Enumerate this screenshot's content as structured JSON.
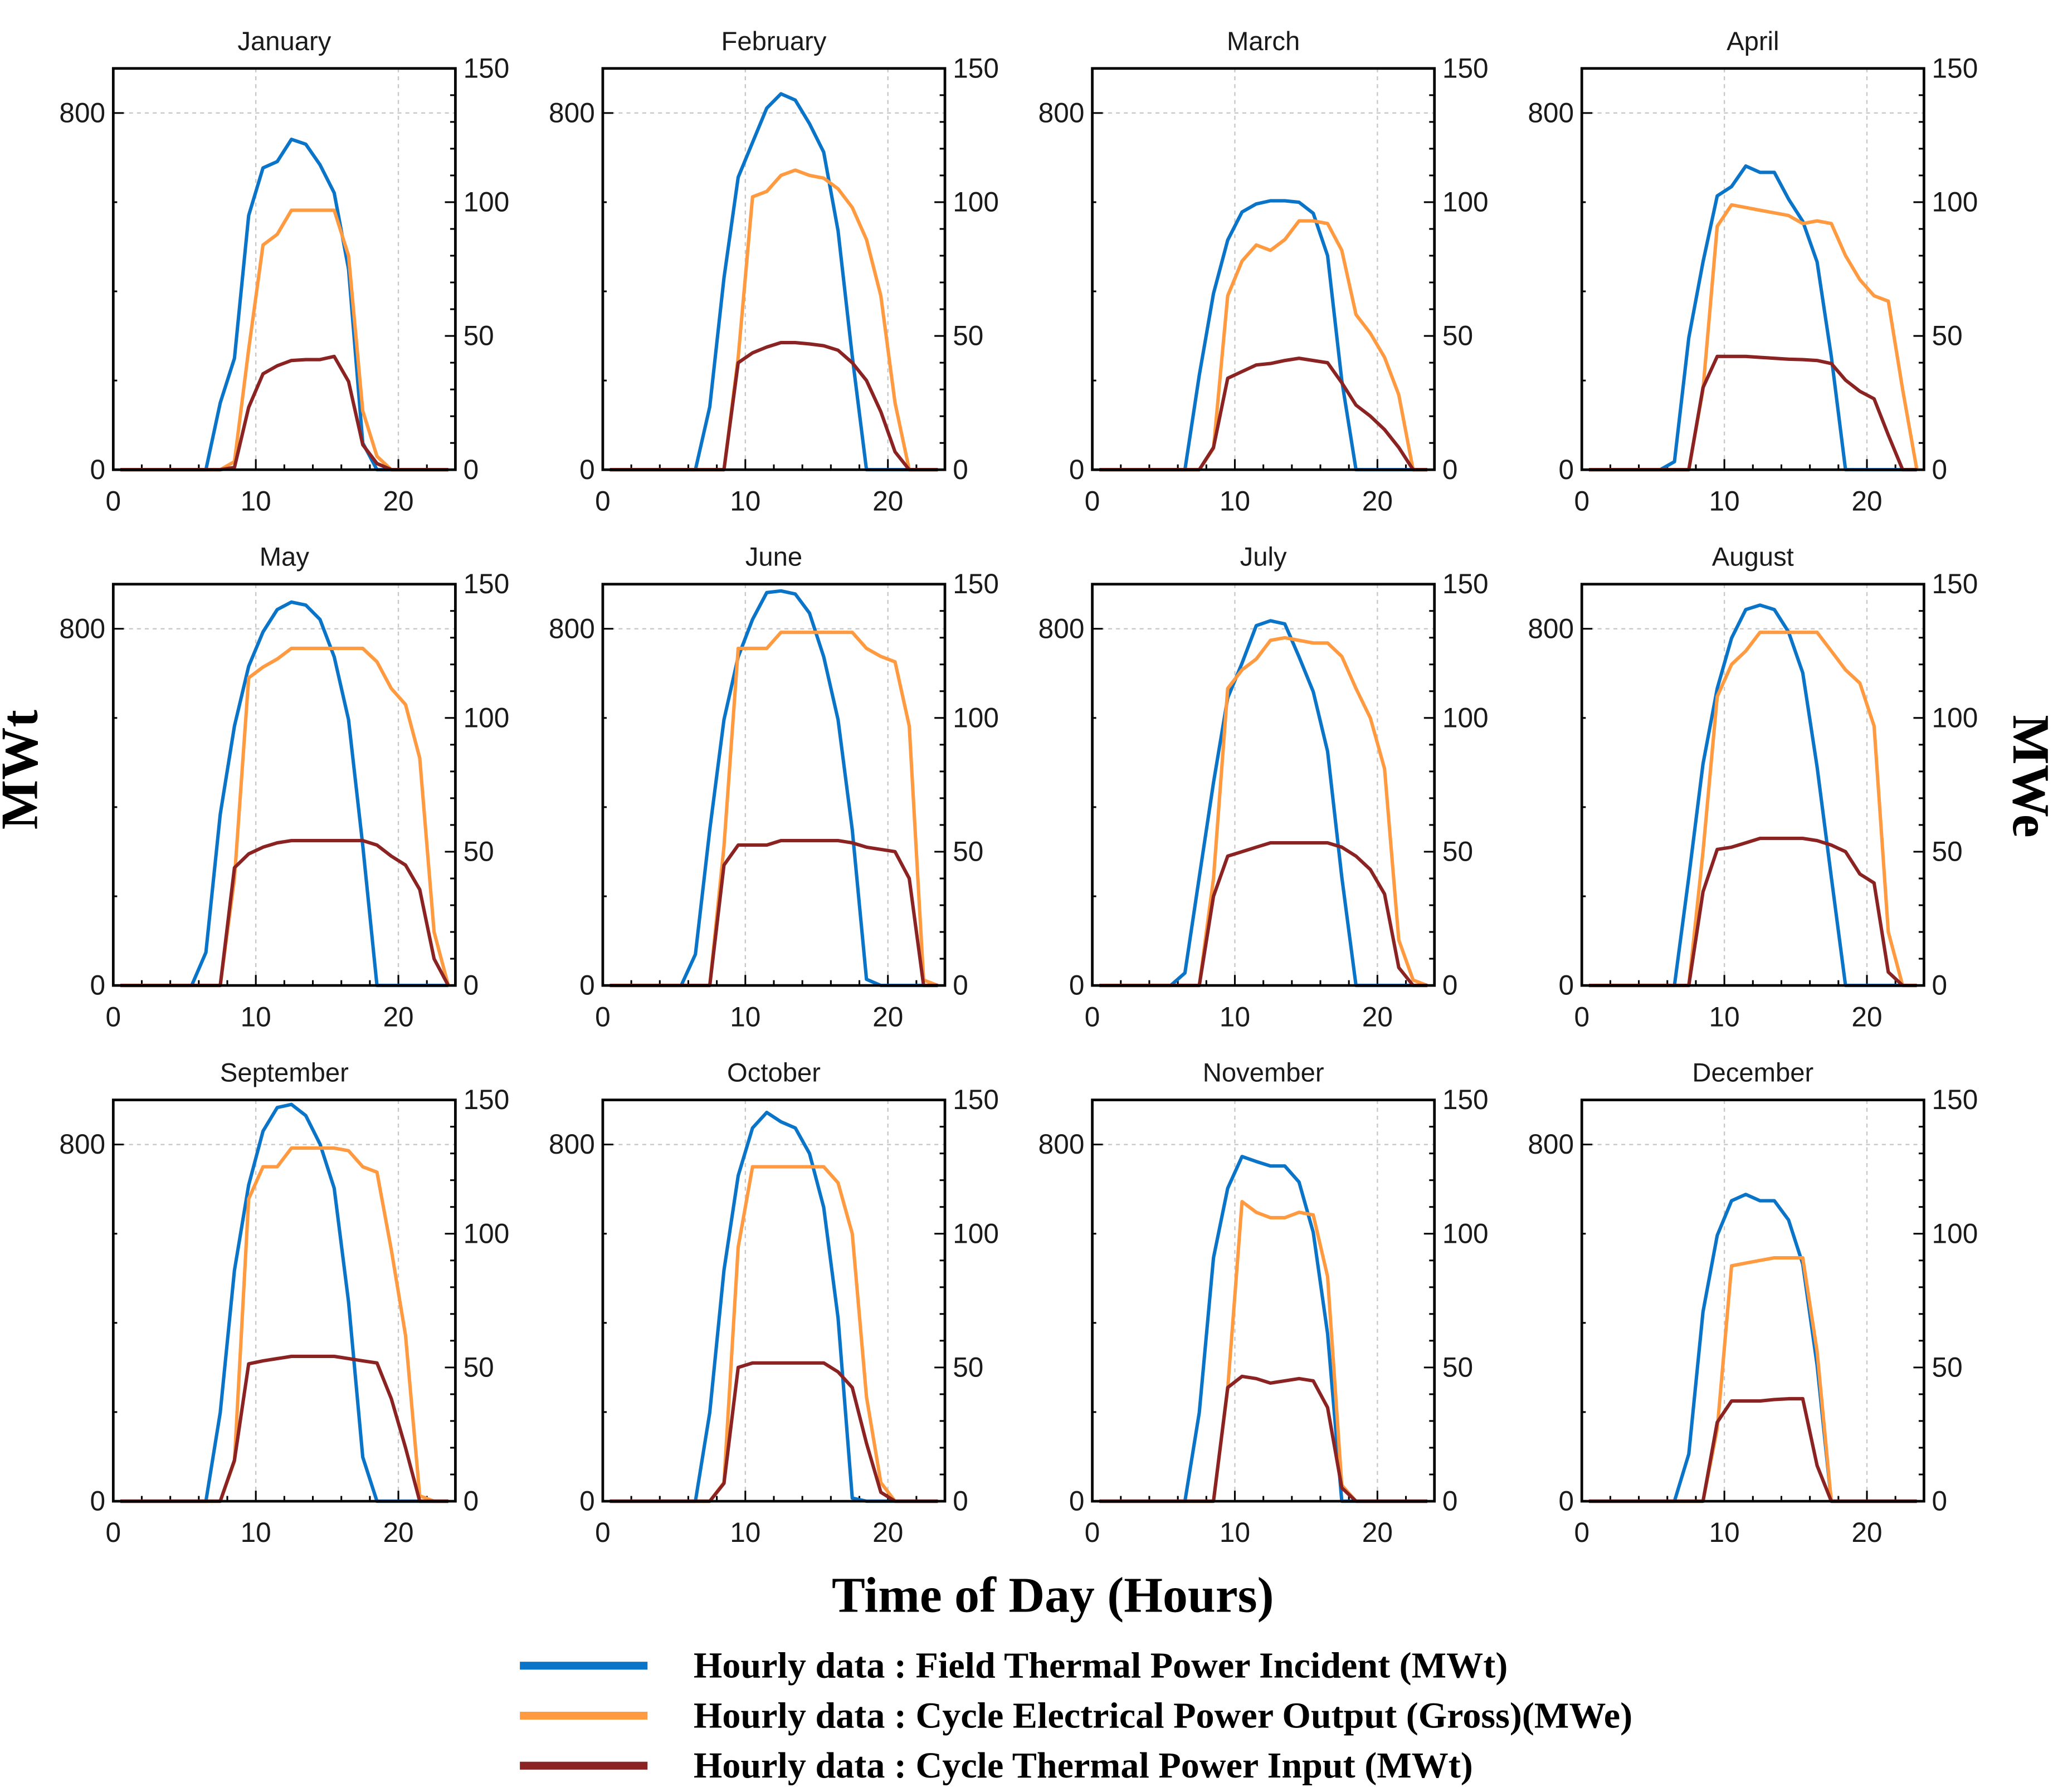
{
  "chart_data": {
    "type": "line",
    "xlabel": "Time of Day (Hours)",
    "ylabel_left": "MWt",
    "ylabel_right": "MWe",
    "xlim": [
      0,
      24
    ],
    "ylim_left": [
      0,
      900
    ],
    "ylim_right": [
      0,
      150
    ],
    "x_ticks": [
      0,
      10,
      20
    ],
    "y_ticks_left": [
      0,
      800
    ],
    "y_ticks_right": [
      0,
      50,
      100,
      150
    ],
    "grid": true,
    "legend_placement": "bottom",
    "x_hours": [
      0.5,
      1.5,
      2.5,
      3.5,
      4.5,
      5.5,
      6.5,
      7.5,
      8.5,
      9.5,
      10.5,
      11.5,
      12.5,
      13.5,
      14.5,
      15.5,
      16.5,
      17.5,
      18.5,
      19.5,
      20.5,
      21.5,
      22.5,
      23.5
    ],
    "series": [
      {
        "key": "field",
        "name": "Hourly data : Field Thermal Power Incident (MWt)",
        "color": "#0A75C8",
        "axis": "left"
      },
      {
        "key": "output",
        "name": "Hourly data : Cycle Electrical Power Output (Gross)(MWe)",
        "color": "#FF9A40",
        "axis": "right"
      },
      {
        "key": "input",
        "name": "Hourly data : Cycle Thermal Power Input (MWt)",
        "color": "#8B2323",
        "axis": "left"
      }
    ],
    "panels": [
      {
        "title": "January",
        "field": [
          0,
          0,
          0,
          0,
          0,
          0,
          0,
          150,
          250,
          570,
          677,
          691,
          741,
          730,
          684,
          621,
          450,
          60,
          0,
          0,
          0,
          0,
          0,
          0
        ],
        "output": [
          0,
          0,
          0,
          0,
          0,
          0,
          0,
          0,
          3,
          45,
          84,
          88,
          97,
          97,
          97,
          97,
          80,
          22,
          5,
          0,
          0,
          0,
          0,
          0
        ],
        "input": [
          0,
          0,
          0,
          0,
          0,
          0,
          0,
          0,
          5,
          140,
          215,
          233,
          245,
          247,
          247,
          254,
          198,
          56,
          14,
          0,
          0,
          0,
          0,
          0
        ]
      },
      {
        "title": "February",
        "field": [
          0,
          0,
          0,
          0,
          0,
          0,
          0,
          141,
          430,
          656,
          734,
          811,
          843,
          829,
          776,
          712,
          536,
          254,
          0,
          0,
          0,
          0,
          0,
          0
        ],
        "output": [
          0,
          0,
          0,
          0,
          0,
          0,
          0,
          0,
          0,
          42,
          102,
          104,
          110,
          112,
          110,
          109,
          105,
          98,
          86,
          65,
          25,
          0,
          0,
          0
        ],
        "input": [
          0,
          0,
          0,
          0,
          0,
          0,
          0,
          0,
          0,
          240,
          262,
          275,
          285,
          285,
          282,
          278,
          268,
          240,
          200,
          130,
          40,
          0,
          0,
          0
        ]
      },
      {
        "title": "March",
        "field": [
          0,
          0,
          0,
          0,
          0,
          0,
          0,
          212,
          395,
          515,
          578,
          596,
          603,
          603,
          600,
          575,
          480,
          200,
          0,
          0,
          0,
          0,
          0,
          0
        ],
        "output": [
          0,
          0,
          0,
          0,
          0,
          0,
          0,
          0,
          8,
          65,
          78,
          84,
          82,
          86,
          93,
          93,
          92,
          82,
          58,
          51,
          42,
          28,
          0,
          0
        ],
        "input": [
          0,
          0,
          0,
          0,
          0,
          0,
          0,
          0,
          50,
          205,
          220,
          235,
          238,
          245,
          250,
          245,
          240,
          195,
          145,
          120,
          90,
          50,
          0,
          0
        ]
      },
      {
        "title": "April",
        "field": [
          0,
          0,
          0,
          0,
          0,
          0,
          18,
          296,
          466,
          614,
          635,
          681,
          667,
          667,
          607,
          557,
          466,
          254,
          0,
          0,
          0,
          0,
          0,
          0
        ],
        "output": [
          0,
          0,
          0,
          0,
          0,
          0,
          0,
          0,
          30,
          91,
          99,
          98,
          97,
          96,
          95,
          92,
          93,
          92,
          80,
          71,
          65,
          63,
          30,
          0
        ],
        "input": [
          0,
          0,
          0,
          0,
          0,
          0,
          0,
          0,
          184,
          254,
          254,
          254,
          252,
          250,
          248,
          247,
          245,
          238,
          201,
          176,
          159,
          78,
          0,
          0
        ]
      },
      {
        "title": "May",
        "field": [
          0,
          0,
          0,
          0,
          0,
          0,
          74,
          384,
          582,
          716,
          793,
          843,
          860,
          853,
          821,
          737,
          596,
          314,
          0,
          0,
          0,
          0,
          0,
          0
        ],
        "output": [
          0,
          0,
          0,
          0,
          0,
          0,
          0,
          0,
          40,
          115,
          119,
          122,
          126,
          126,
          126,
          126,
          126,
          126,
          121,
          111,
          105,
          85,
          20,
          0
        ],
        "input": [
          0,
          0,
          0,
          0,
          0,
          0,
          0,
          0,
          264,
          295,
          310,
          320,
          325,
          325,
          325,
          325,
          325,
          325,
          315,
          290,
          270,
          215,
          60,
          0
        ]
      },
      {
        "title": "June",
        "field": [
          0,
          0,
          0,
          0,
          0,
          0,
          70,
          349,
          596,
          737,
          821,
          881,
          885,
          878,
          835,
          737,
          596,
          349,
          14,
          0,
          0,
          0,
          0,
          0
        ],
        "output": [
          0,
          0,
          0,
          0,
          0,
          0,
          0,
          0,
          52,
          126,
          126,
          126,
          132,
          132,
          132,
          132,
          132,
          132,
          126,
          123,
          121,
          97,
          2,
          0
        ],
        "input": [
          0,
          0,
          0,
          0,
          0,
          0,
          0,
          0,
          270,
          315,
          315,
          315,
          325,
          325,
          325,
          325,
          325,
          320,
          310,
          305,
          300,
          240,
          0,
          0
        ]
      },
      {
        "title": "July",
        "field": [
          0,
          0,
          0,
          0,
          0,
          0,
          28,
          243,
          455,
          645,
          723,
          807,
          818,
          811,
          737,
          659,
          525,
          243,
          0,
          0,
          0,
          0,
          0,
          0
        ],
        "output": [
          0,
          0,
          0,
          0,
          0,
          0,
          0,
          0,
          40,
          111,
          118,
          122,
          129,
          130,
          129,
          128,
          128,
          123,
          111,
          100,
          81,
          17,
          2,
          0
        ],
        "input": [
          0,
          0,
          0,
          0,
          0,
          0,
          0,
          0,
          200,
          290,
          300,
          310,
          320,
          320,
          320,
          320,
          320,
          310,
          290,
          260,
          205,
          40,
          0,
          0
        ]
      },
      {
        "title": "August",
        "field": [
          0,
          0,
          0,
          0,
          0,
          0,
          0,
          243,
          497,
          666,
          779,
          843,
          853,
          843,
          793,
          701,
          490,
          243,
          0,
          0,
          0,
          0,
          0,
          0
        ],
        "output": [
          0,
          0,
          0,
          0,
          0,
          0,
          0,
          0,
          50,
          108,
          120,
          125,
          132,
          132,
          132,
          132,
          132,
          125,
          118,
          113,
          97,
          20,
          0,
          0
        ],
        "input": [
          0,
          0,
          0,
          0,
          0,
          0,
          0,
          0,
          210,
          305,
          310,
          320,
          330,
          330,
          330,
          330,
          325,
          315,
          300,
          250,
          230,
          30,
          0,
          0
        ]
      },
      {
        "title": "September",
        "field": [
          0,
          0,
          0,
          0,
          0,
          0,
          0,
          199,
          518,
          709,
          830,
          883,
          890,
          865,
          801,
          702,
          447,
          99,
          0,
          0,
          0,
          0,
          0,
          0
        ],
        "output": [
          0,
          0,
          0,
          0,
          0,
          0,
          0,
          0,
          15,
          113,
          125,
          125,
          132,
          132,
          132,
          132,
          131,
          125,
          123,
          94,
          62,
          2,
          0,
          0
        ],
        "input": [
          0,
          0,
          0,
          0,
          0,
          0,
          0,
          0,
          92,
          308,
          315,
          320,
          325,
          325,
          325,
          325,
          320,
          315,
          310,
          230,
          120,
          0,
          0,
          0
        ]
      },
      {
        "title": "October",
        "field": [
          0,
          0,
          0,
          0,
          0,
          0,
          0,
          199,
          518,
          730,
          837,
          872,
          851,
          837,
          780,
          659,
          411,
          7,
          0,
          0,
          0,
          0,
          0,
          0
        ],
        "output": [
          0,
          0,
          0,
          0,
          0,
          0,
          0,
          0,
          7,
          95,
          125,
          125,
          125,
          125,
          125,
          125,
          119,
          100,
          39,
          7,
          0,
          0,
          0,
          0
        ],
        "input": [
          0,
          0,
          0,
          0,
          0,
          0,
          0,
          0,
          40,
          300,
          310,
          310,
          310,
          310,
          310,
          310,
          290,
          255,
          130,
          20,
          0,
          0,
          0,
          0
        ]
      },
      {
        "title": "November",
        "field": [
          0,
          0,
          0,
          0,
          0,
          0,
          0,
          199,
          546,
          702,
          773,
          762,
          752,
          752,
          716,
          603,
          376,
          0,
          0,
          0,
          0,
          0,
          0,
          0
        ],
        "output": [
          0,
          0,
          0,
          0,
          0,
          0,
          0,
          0,
          0,
          42,
          112,
          108,
          106,
          106,
          108,
          107,
          84,
          6,
          0,
          0,
          0,
          0,
          0,
          0
        ],
        "input": [
          0,
          0,
          0,
          0,
          0,
          0,
          0,
          0,
          0,
          255,
          280,
          275,
          265,
          270,
          275,
          270,
          210,
          30,
          0,
          0,
          0,
          0,
          0,
          0
        ]
      },
      {
        "title": "December",
        "field": [
          0,
          0,
          0,
          0,
          0,
          0,
          0,
          106,
          425,
          596,
          674,
          688,
          674,
          674,
          631,
          532,
          305,
          0,
          0,
          0,
          0,
          0,
          0,
          0
        ],
        "output": [
          0,
          0,
          0,
          0,
          0,
          0,
          0,
          0,
          0,
          27,
          88,
          89,
          90,
          91,
          91,
          91,
          56,
          0,
          0,
          0,
          0,
          0,
          0,
          0
        ],
        "input": [
          0,
          0,
          0,
          0,
          0,
          0,
          0,
          0,
          0,
          177,
          225,
          225,
          225,
          228,
          230,
          230,
          80,
          0,
          0,
          0,
          0,
          0,
          0,
          0
        ]
      }
    ]
  }
}
